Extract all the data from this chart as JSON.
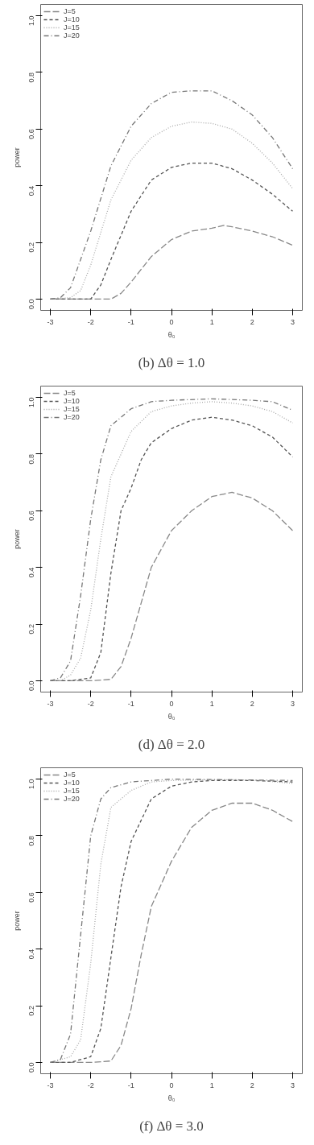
{
  "chart_data": [
    {
      "type": "line",
      "title": "(b) Δθ = 1.0",
      "xlabel": "θ₀",
      "ylabel": "power",
      "xlim": [
        -3.24,
        3.24
      ],
      "ylim": [
        -0.04,
        1.04
      ],
      "xticks": [
        -3,
        -2,
        -1,
        0,
        1,
        2,
        3
      ],
      "yticks": [
        {
          "value": 0,
          "label": "0.0"
        },
        {
          "value": 0.2,
          "label": "0.2"
        },
        {
          "value": 0.4,
          "label": "0.4"
        },
        {
          "value": 0.6,
          "label": "0.6"
        },
        {
          "value": 0.8,
          "label": "0.8"
        },
        {
          "value": 1,
          "label": "1.0"
        }
      ],
      "grid": false,
      "legend": "top left",
      "series": [
        {
          "name": "J=5",
          "color": "#888888",
          "line_style": "longdash",
          "x": [
            -3,
            -2.5,
            -2,
            -1.5,
            -1.25,
            -1,
            -0.5,
            0,
            0.5,
            1,
            1.3,
            1.5,
            2,
            2.5,
            3
          ],
          "values": [
            0,
            0,
            0,
            0,
            0.02,
            0.06,
            0.15,
            0.21,
            0.24,
            0.25,
            0.26,
            0.255,
            0.24,
            0.22,
            0.19
          ]
        },
        {
          "name": "J=10",
          "color": "#555555",
          "line_style": "dashed",
          "x": [
            -3,
            -2.5,
            -2,
            -1.75,
            -1.5,
            -1,
            -0.5,
            0,
            0.5,
            1,
            1.5,
            2,
            2.5,
            3
          ],
          "values": [
            0,
            0,
            0,
            0.05,
            0.14,
            0.31,
            0.42,
            0.465,
            0.48,
            0.48,
            0.46,
            0.42,
            0.37,
            0.31
          ]
        },
        {
          "name": "J=15",
          "color": "#aaaaaa",
          "line_style": "dotted",
          "x": [
            -3,
            -2.5,
            -2.25,
            -2,
            -1.5,
            -1,
            -0.5,
            0,
            0.5,
            1,
            1.5,
            2,
            2.5,
            3
          ],
          "values": [
            0,
            0.005,
            0.03,
            0.12,
            0.35,
            0.49,
            0.57,
            0.61,
            0.625,
            0.62,
            0.6,
            0.55,
            0.48,
            0.39
          ]
        },
        {
          "name": "J=20",
          "color": "#777777",
          "line_style": "dashdot",
          "x": [
            -3,
            -2.75,
            -2.5,
            -2,
            -1.5,
            -1,
            -0.5,
            0,
            0.5,
            1,
            1.5,
            2,
            2.5,
            3
          ],
          "values": [
            0,
            0.005,
            0.04,
            0.24,
            0.47,
            0.61,
            0.69,
            0.73,
            0.735,
            0.735,
            0.7,
            0.65,
            0.57,
            0.46
          ]
        }
      ]
    },
    {
      "type": "line",
      "title": "(d) Δθ = 2.0",
      "xlabel": "θ₀",
      "ylabel": "power",
      "xlim": [
        -3.24,
        3.24
      ],
      "ylim": [
        -0.04,
        1.04
      ],
      "xticks": [
        -3,
        -2,
        -1,
        0,
        1,
        2,
        3
      ],
      "yticks": [
        {
          "value": 0,
          "label": "0.0"
        },
        {
          "value": 0.2,
          "label": "0.2"
        },
        {
          "value": 0.4,
          "label": "0.4"
        },
        {
          "value": 0.6,
          "label": "0.6"
        },
        {
          "value": 0.8,
          "label": "0.8"
        },
        {
          "value": 1,
          "label": "1.0"
        }
      ],
      "grid": false,
      "legend": "top left",
      "series": [
        {
          "name": "J=5",
          "color": "#888888",
          "line_style": "longdash",
          "x": [
            -3,
            -2,
            -1.5,
            -1.25,
            -1,
            -0.5,
            0,
            0.5,
            1,
            1.5,
            2,
            2.5,
            3
          ],
          "values": [
            0,
            0,
            0.005,
            0.05,
            0.15,
            0.4,
            0.53,
            0.6,
            0.65,
            0.665,
            0.645,
            0.6,
            0.53
          ]
        },
        {
          "name": "J=10",
          "color": "#555555",
          "line_style": "dashed",
          "x": [
            -3,
            -2.5,
            -2,
            -1.75,
            -1.5,
            -1.25,
            -1,
            -0.75,
            -0.5,
            0,
            0.5,
            1,
            1.5,
            2,
            2.5,
            3
          ],
          "values": [
            0,
            0,
            0.01,
            0.1,
            0.38,
            0.6,
            0.68,
            0.78,
            0.84,
            0.89,
            0.92,
            0.93,
            0.92,
            0.9,
            0.86,
            0.79
          ]
        },
        {
          "name": "J=15",
          "color": "#aaaaaa",
          "line_style": "dotted",
          "x": [
            -3,
            -2.75,
            -2.5,
            -2.25,
            -2,
            -1.75,
            -1.5,
            -1,
            -0.5,
            0,
            0.5,
            1,
            1.5,
            2,
            2.5,
            3
          ],
          "values": [
            0,
            0,
            0.02,
            0.08,
            0.25,
            0.5,
            0.72,
            0.88,
            0.95,
            0.97,
            0.98,
            0.985,
            0.98,
            0.97,
            0.95,
            0.91
          ]
        },
        {
          "name": "J=20",
          "color": "#777777",
          "line_style": "dashdot",
          "x": [
            -3,
            -2.75,
            -2.5,
            -2.25,
            -2,
            -1.75,
            -1.5,
            -1,
            -0.5,
            0,
            1,
            2,
            2.5,
            3
          ],
          "values": [
            0,
            0.01,
            0.07,
            0.3,
            0.57,
            0.78,
            0.9,
            0.96,
            0.985,
            0.99,
            0.995,
            0.99,
            0.985,
            0.955
          ]
        }
      ]
    },
    {
      "type": "line",
      "title": "(f) Δθ = 3.0",
      "xlabel": "θ₀",
      "ylabel": "power",
      "xlim": [
        -3.24,
        3.24
      ],
      "ylim": [
        -0.04,
        1.04
      ],
      "xticks": [
        -3,
        -2,
        -1,
        0,
        1,
        2,
        3
      ],
      "yticks": [
        {
          "value": 0,
          "label": "0.0"
        },
        {
          "value": 0.2,
          "label": "0.2"
        },
        {
          "value": 0.4,
          "label": "0.4"
        },
        {
          "value": 0.6,
          "label": "0.6"
        },
        {
          "value": 0.8,
          "label": "0.8"
        },
        {
          "value": 1,
          "label": "1.0"
        }
      ],
      "grid": false,
      "legend": "top left",
      "series": [
        {
          "name": "J=5",
          "color": "#888888",
          "line_style": "longdash",
          "x": [
            -3,
            -2,
            -1.5,
            -1.25,
            -1,
            -0.75,
            -0.5,
            0,
            0.5,
            1,
            1.5,
            2,
            2.5,
            3
          ],
          "values": [
            0,
            0,
            0.005,
            0.06,
            0.19,
            0.38,
            0.55,
            0.71,
            0.83,
            0.89,
            0.915,
            0.915,
            0.89,
            0.85
          ]
        },
        {
          "name": "J=10",
          "color": "#555555",
          "line_style": "dashed",
          "x": [
            -3,
            -2.5,
            -2,
            -1.75,
            -1.5,
            -1.25,
            -1,
            -0.5,
            0,
            0.5,
            1,
            2,
            3
          ],
          "values": [
            0,
            0,
            0.02,
            0.12,
            0.37,
            0.62,
            0.78,
            0.93,
            0.975,
            0.99,
            0.995,
            0.995,
            0.99
          ]
        },
        {
          "name": "J=15",
          "color": "#aaaaaa",
          "line_style": "dotted",
          "x": [
            -3,
            -2.5,
            -2.25,
            -2,
            -1.75,
            -1.5,
            -1,
            -0.5,
            0,
            1,
            2,
            3
          ],
          "values": [
            0,
            0.02,
            0.08,
            0.35,
            0.7,
            0.9,
            0.96,
            0.99,
            0.995,
            0.998,
            0.997,
            0.985
          ]
        },
        {
          "name": "J=20",
          "color": "#777777",
          "line_style": "dashdot",
          "x": [
            -3,
            -2.75,
            -2.5,
            -2.25,
            -2,
            -1.75,
            -1.5,
            -1,
            -0.5,
            0,
            3
          ],
          "values": [
            0,
            0.01,
            0.1,
            0.45,
            0.8,
            0.93,
            0.97,
            0.99,
            0.995,
            1.0,
            0.995
          ]
        }
      ]
    }
  ]
}
